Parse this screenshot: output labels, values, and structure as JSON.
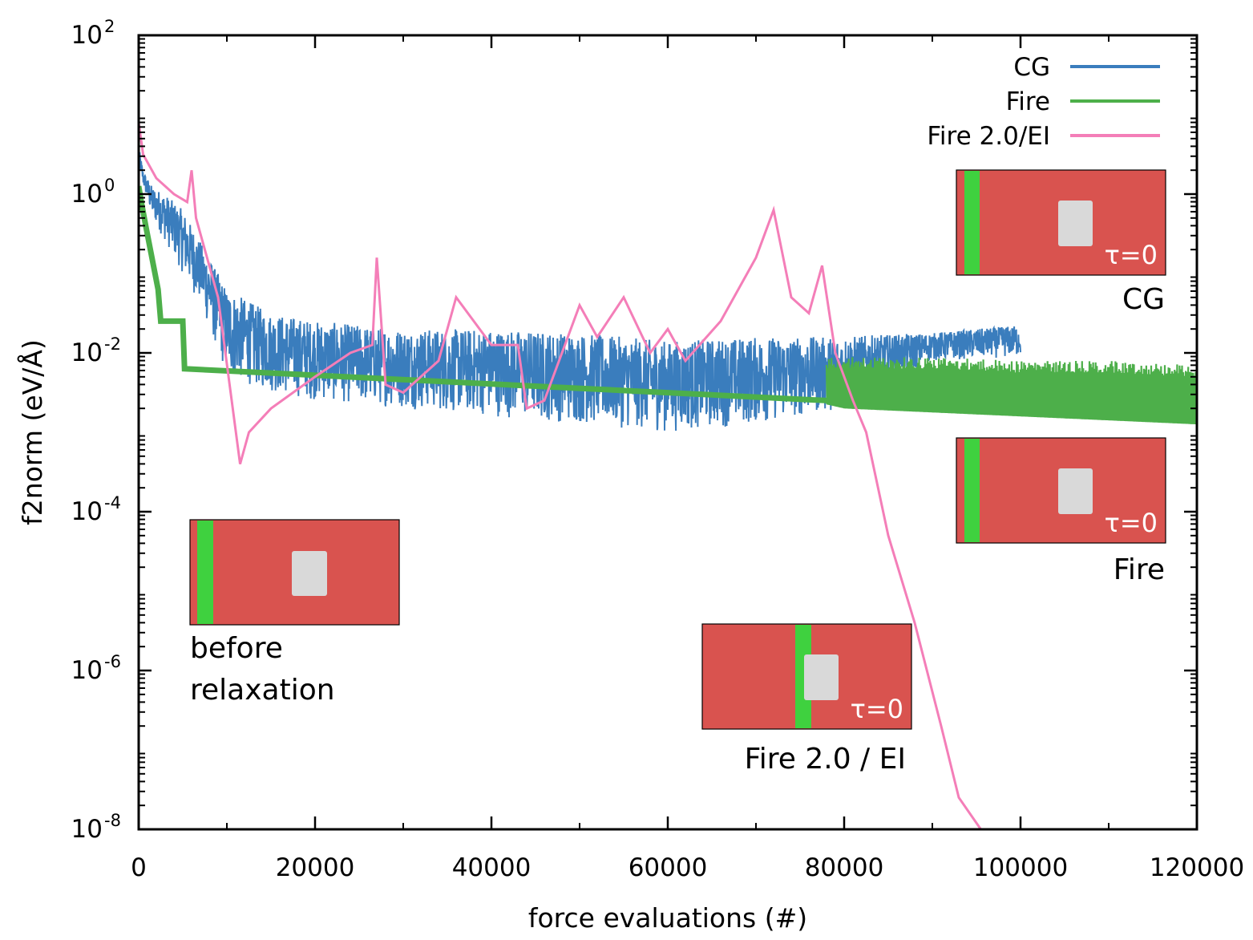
{
  "chart_data": {
    "type": "line",
    "xlabel": "force evaluations (#)",
    "ylabel": "f2norm (eV/Å)",
    "xlim": [
      0,
      120000
    ],
    "ylim_log10": [
      -8,
      2
    ],
    "yscale": "log",
    "x_ticks": [
      0,
      20000,
      40000,
      60000,
      80000,
      100000,
      120000
    ],
    "x_tick_labels": [
      "0",
      "20000",
      "40000",
      "60000",
      "80000",
      "100000",
      "120000"
    ],
    "y_ticks": [
      {
        "base": "10",
        "exp": "2",
        "value": 2
      },
      {
        "base": "10",
        "exp": "0",
        "value": 0
      },
      {
        "base": "10",
        "exp": "-2",
        "value": -2
      },
      {
        "base": "10",
        "exp": "-4",
        "value": -4
      },
      {
        "base": "10",
        "exp": "-6",
        "value": -6
      },
      {
        "base": "10",
        "exp": "-8",
        "value": -8
      }
    ],
    "legend_position": "top-right",
    "series": [
      {
        "name": "CG",
        "color": "#3a7dbd",
        "style": "noisy band",
        "x": [
          0,
          500,
          1500,
          3000,
          5000,
          7000,
          10000,
          15000,
          20000,
          30000,
          40000,
          50000,
          60000,
          70000,
          78000,
          90000,
          100000
        ],
        "upper_log10": [
          0.6,
          0.3,
          0.1,
          0.0,
          -0.2,
          -0.6,
          -1.2,
          -1.5,
          -1.6,
          -1.7,
          -1.7,
          -1.75,
          -1.85,
          -1.8,
          -1.8,
          -1.75,
          -1.65
        ],
        "lower_log10": [
          0.4,
          0.1,
          -0.3,
          -0.6,
          -1.0,
          -1.4,
          -2.3,
          -2.5,
          -2.6,
          -2.7,
          -2.8,
          -2.9,
          -3.0,
          -2.9,
          -2.75,
          -2.1,
          -2.05
        ]
      },
      {
        "name": "Fire",
        "color": "#4daf4a",
        "style": "line then oscillating band",
        "x": [
          0,
          300,
          800,
          1500,
          2200,
          2500,
          5000,
          5200,
          78000,
          80000,
          90000,
          100000,
          110000,
          120000
        ],
        "y_log10": [
          0.1,
          -0.1,
          -0.4,
          -0.8,
          -1.2,
          -1.6,
          -1.6,
          -2.2,
          -2.6,
          -2.65,
          -2.7,
          -2.75,
          -2.8,
          -2.85
        ],
        "band_upper_log10": [
          -2.05,
          -2.05,
          -2.1,
          -2.1,
          -2.15
        ],
        "band_x": [
          78000,
          90000,
          100000,
          110000,
          120000
        ]
      },
      {
        "name": "Fire 2.0/EI",
        "color": "#f47eb8",
        "style": "line",
        "x": [
          0,
          500,
          2000,
          4000,
          5500,
          6000,
          6500,
          9000,
          11500,
          12500,
          15000,
          20000,
          24000,
          26500,
          27000,
          28000,
          30000,
          34000,
          36000,
          40000,
          43000,
          44000,
          46000,
          50000,
          52000,
          55000,
          58000,
          60000,
          62000,
          66000,
          70000,
          72000,
          74000,
          76000,
          77500,
          79000,
          81000,
          82500,
          85000,
          88000,
          91000,
          93000,
          95500
        ],
        "y_log10": [
          0.9,
          0.5,
          0.2,
          0.0,
          -0.1,
          0.3,
          -0.3,
          -1.3,
          -3.4,
          -3.0,
          -2.7,
          -2.3,
          -2.0,
          -1.9,
          -0.8,
          -2.4,
          -2.5,
          -2.1,
          -1.3,
          -1.9,
          -1.9,
          -2.7,
          -2.6,
          -1.4,
          -1.8,
          -1.3,
          -2.0,
          -1.7,
          -2.1,
          -1.6,
          -0.8,
          -0.2,
          -1.3,
          -1.5,
          -0.9,
          -2.0,
          -2.6,
          -3.0,
          -4.3,
          -5.4,
          -6.7,
          -7.6,
          -8.0
        ]
      }
    ],
    "insets": [
      {
        "id": "before",
        "label_lines": [
          "before",
          "relaxation"
        ],
        "tau": ""
      },
      {
        "id": "cg",
        "label_lines": [
          "CG"
        ],
        "tau": "τ=0"
      },
      {
        "id": "fire",
        "label_lines": [
          "Fire"
        ],
        "tau": "τ=0"
      },
      {
        "id": "fire2",
        "label_lines": [
          "Fire 2.0 / EI"
        ],
        "tau": "τ=0"
      }
    ],
    "inset_colors": {
      "matrix": "#d9534f",
      "band": "#3fd13f",
      "particle": "#d9d9d9"
    }
  }
}
